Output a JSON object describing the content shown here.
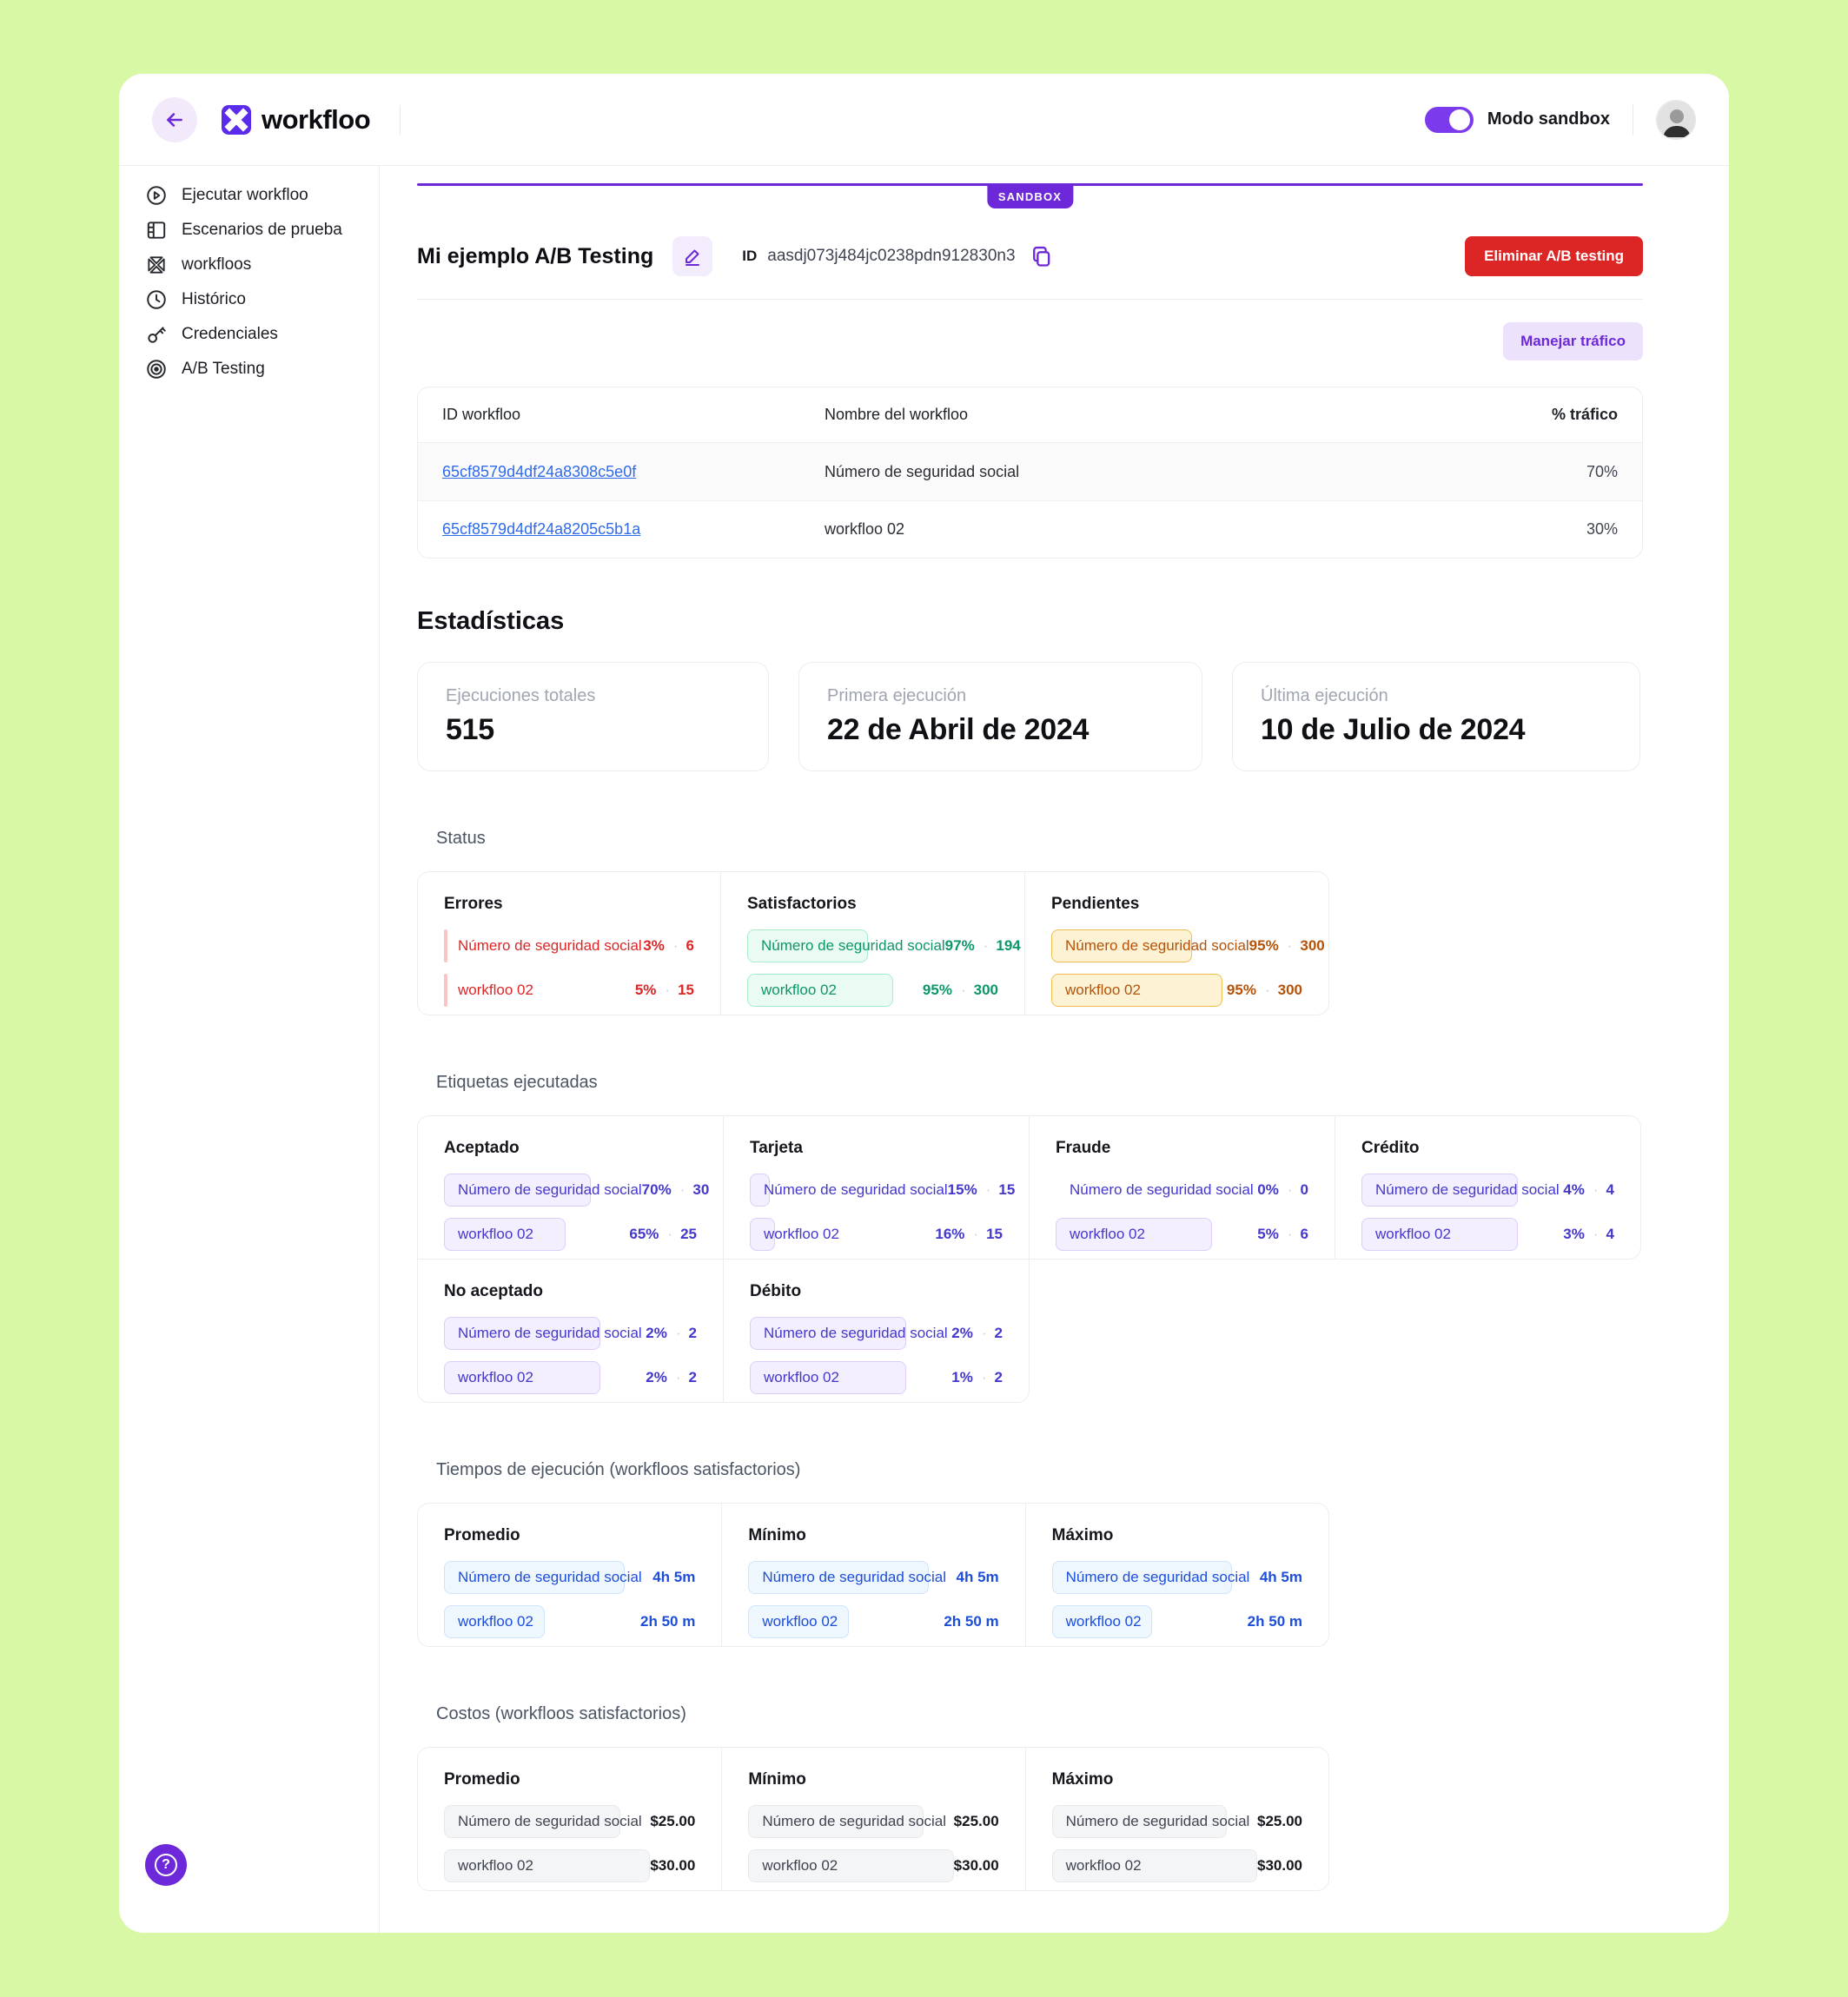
{
  "colors": {
    "page_background": "#d9f8a6",
    "brand_purple": "#6d28d9",
    "toggle_purple": "#7c3aed",
    "logo_purple": "#5a2bea",
    "danger_red": "#dc2626",
    "link_blue": "#2f6beb",
    "success_green": "#0d9668",
    "pending_amber": "#b45309",
    "label_indigo": "#4338ca",
    "time_blue": "#1d4ed8"
  },
  "header": {
    "brand": "workfloo",
    "mode_label": "Modo sandbox"
  },
  "sidebar": {
    "items": [
      {
        "label": "Ejecutar workfloo"
      },
      {
        "label": "Escenarios de prueba"
      },
      {
        "label": "workfloos"
      },
      {
        "label": "Histórico"
      },
      {
        "label": "Credenciales"
      },
      {
        "label": "A/B Testing"
      }
    ]
  },
  "page": {
    "sandbox_badge": "SANDBOX",
    "title": "Mi ejemplo A/B Testing",
    "id_label": "ID",
    "id_value": "aasdj073j484jc0238pdn912830n3",
    "delete_button": "Eliminar A/B testing",
    "traffic_button": "Manejar tráfico"
  },
  "table": {
    "col_id": "ID workfloo",
    "col_name": "Nombre del workfloo",
    "col_traffic": "% tráfico",
    "rows": [
      {
        "id": "65cf8579d4df24a8308c5e0f",
        "name": "Número de seguridad social",
        "traffic": "70%"
      },
      {
        "id": "65cf8579d4df24a8205c5b1a",
        "name": "workfloo 02",
        "traffic": "30%"
      }
    ]
  },
  "stats": {
    "heading": "Estadísticas",
    "cards": [
      {
        "label": "Ejecuciones totales",
        "value": "515"
      },
      {
        "label": "Primera ejecución",
        "value": "22 de Abril  de 2024"
      },
      {
        "label": "Última ejecución",
        "value": "10 de Julio  de 2024"
      }
    ]
  },
  "status": {
    "heading": "Status",
    "groups": [
      {
        "title": "Errores",
        "rows": [
          {
            "label": "Número de seguridad social",
            "pct": "3%",
            "count": "6",
            "bar": 1.5
          },
          {
            "label": "workfloo 02",
            "pct": "5%",
            "count": "15",
            "bar": 1.5
          }
        ]
      },
      {
        "title": "Satisfactorios",
        "rows": [
          {
            "label": "Número de seguridad social",
            "pct": "97%",
            "count": "194",
            "bar": 48
          },
          {
            "label": "workfloo 02",
            "pct": "95%",
            "count": "300",
            "bar": 58
          }
        ]
      },
      {
        "title": "Pendientes",
        "rows": [
          {
            "label": "Número de seguridad social",
            "pct": "95%",
            "count": "300",
            "bar": 56
          },
          {
            "label": "workfloo 02",
            "pct": "95%",
            "count": "300",
            "bar": 68
          }
        ]
      }
    ]
  },
  "labels_executed": {
    "heading": "Etiquetas ejecutadas",
    "groups": [
      {
        "title": "Aceptado",
        "rows": [
          {
            "label": "Número de seguridad social",
            "pct": "70%",
            "count": "30",
            "bar": 58
          },
          {
            "label": "workfloo 02",
            "pct": "65%",
            "count": "25",
            "bar": 48
          }
        ]
      },
      {
        "title": "Tarjeta",
        "rows": [
          {
            "label": "Número de seguridad social",
            "pct": "15%",
            "count": "15",
            "bar": 8
          },
          {
            "label": "workfloo 02",
            "pct": "16%",
            "count": "15",
            "bar": 10
          }
        ]
      },
      {
        "title": "Fraude",
        "rows": [
          {
            "label": "Número de seguridad social",
            "pct": "0%",
            "count": "0",
            "bar": 0
          },
          {
            "label": "workfloo 02",
            "pct": "5%",
            "count": "6",
            "bar": 62
          }
        ]
      },
      {
        "title": "Crédito",
        "rows": [
          {
            "label": "Número de seguridad social",
            "pct": "4%",
            "count": "4",
            "bar": 62
          },
          {
            "label": "workfloo 02",
            "pct": "3%",
            "count": "4",
            "bar": 62
          }
        ]
      },
      {
        "title": "No aceptado",
        "rows": [
          {
            "label": "Número de seguridad social",
            "pct": "2%",
            "count": "2",
            "bar": 62
          },
          {
            "label": "workfloo 02",
            "pct": "2%",
            "count": "2",
            "bar": 62
          }
        ]
      },
      {
        "title": "Débito",
        "rows": [
          {
            "label": "Número de seguridad social",
            "pct": "2%",
            "count": "2",
            "bar": 62
          },
          {
            "label": "workfloo 02",
            "pct": "1%",
            "count": "2",
            "bar": 62
          }
        ]
      }
    ]
  },
  "exec_times": {
    "heading": "Tiempos de ejecución (workfloos satisfactorios)",
    "groups": [
      {
        "title": "Promedio",
        "rows": [
          {
            "label": "Número de seguridad social",
            "value": "4h 5m",
            "bar": 72
          },
          {
            "label": "workfloo 02",
            "value": "2h 50 m",
            "bar": 40
          }
        ]
      },
      {
        "title": "Mínimo",
        "rows": [
          {
            "label": "Número de seguridad social",
            "value": "4h 5m",
            "bar": 72
          },
          {
            "label": "workfloo 02",
            "value": "2h 50 m",
            "bar": 40
          }
        ]
      },
      {
        "title": "Máximo",
        "rows": [
          {
            "label": "Número de seguridad social",
            "value": "4h 5m",
            "bar": 72
          },
          {
            "label": "workfloo 02",
            "value": "2h 50 m",
            "bar": 40
          }
        ]
      }
    ]
  },
  "costs": {
    "heading": "Costos (workfloos satisfactorios)",
    "groups": [
      {
        "title": "Promedio",
        "rows": [
          {
            "label": "Número de seguridad social",
            "value": "$25.00",
            "bar": 70
          },
          {
            "label": "workfloo 02",
            "value": "$30.00",
            "bar": 82
          }
        ]
      },
      {
        "title": "Mínimo",
        "rows": [
          {
            "label": "Número de seguridad social",
            "value": "$25.00",
            "bar": 70
          },
          {
            "label": "workfloo 02",
            "value": "$30.00",
            "bar": 82
          }
        ]
      },
      {
        "title": "Máximo",
        "rows": [
          {
            "label": "Número de seguridad social",
            "value": "$25.00",
            "bar": 70
          },
          {
            "label": "workfloo 02",
            "value": "$30.00",
            "bar": 82
          }
        ]
      }
    ]
  }
}
